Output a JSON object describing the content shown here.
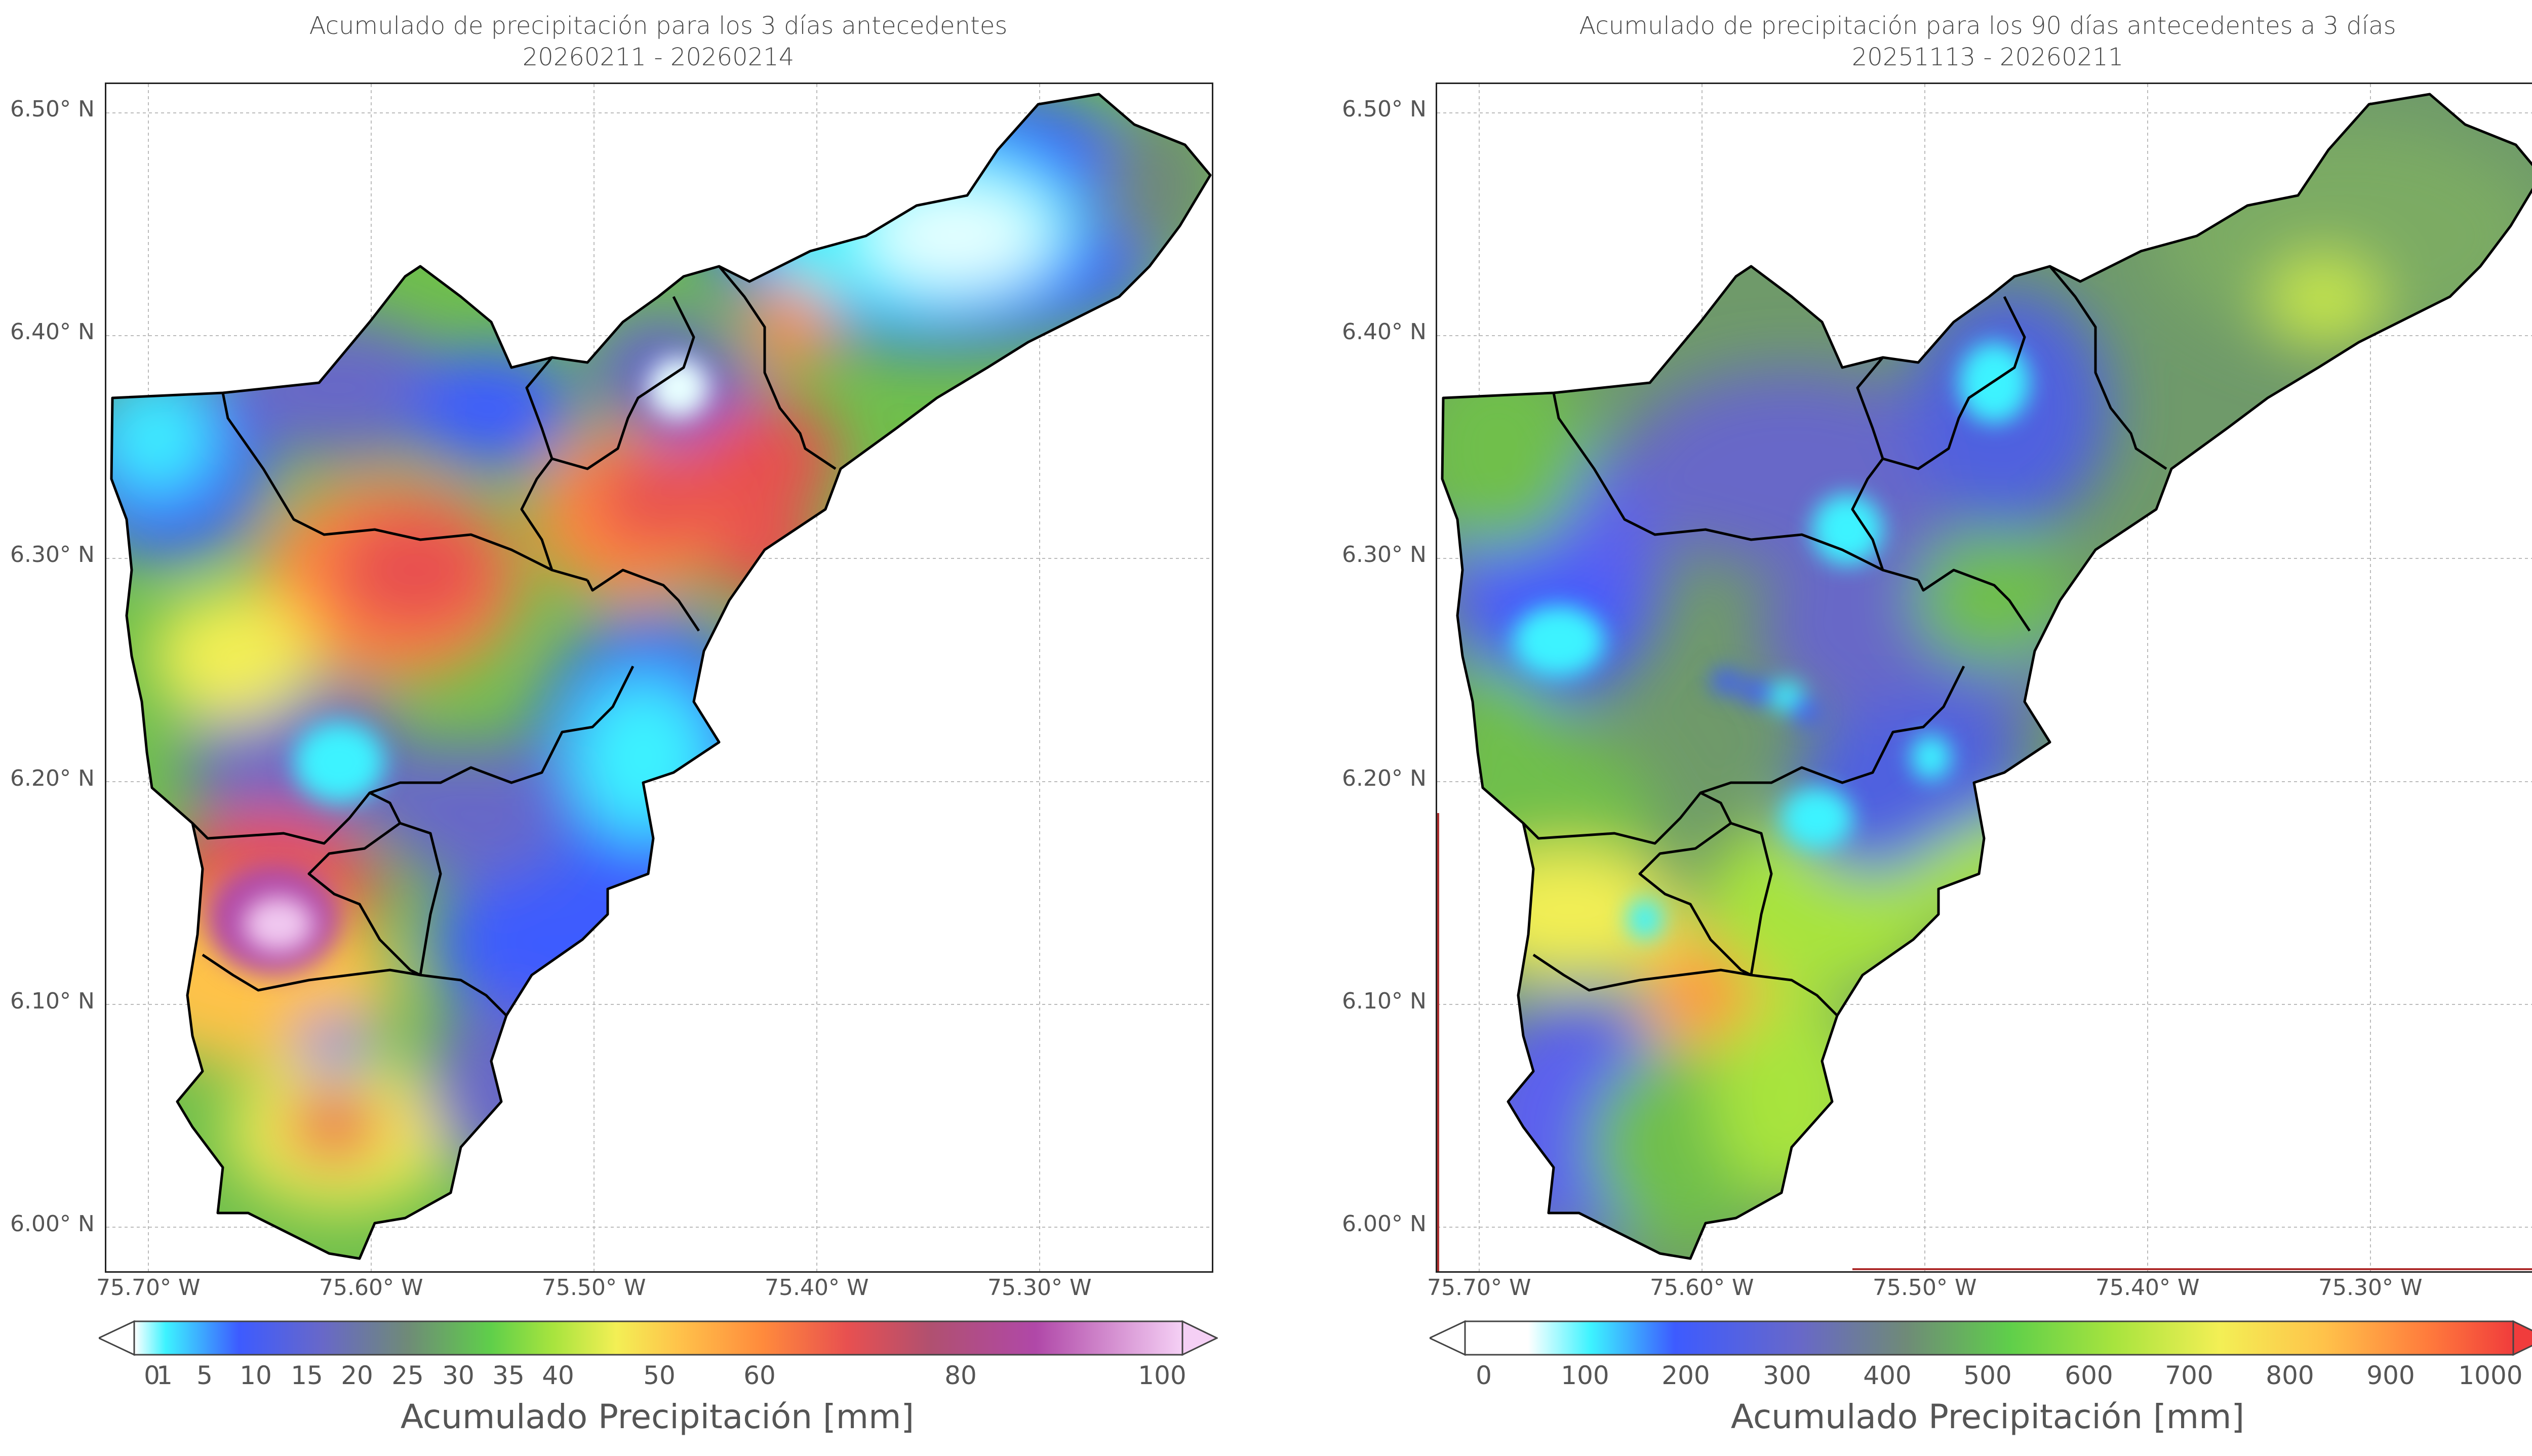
{
  "panels": [
    {
      "title_line1": "Acumulado de precipitación para los 3 días antecedentes",
      "title_line2": "20260211 - 20260214",
      "lat_labels": [
        "6.50° N",
        "6.40° N",
        "6.30° N",
        "6.20° N",
        "6.10° N",
        "6.00° N"
      ],
      "lon_labels": [
        "75.70° W",
        "75.60° W",
        "75.50° W",
        "75.40° W",
        "75.30° W"
      ],
      "colorbar": {
        "title": "Acumulado Precipitación [mm]",
        "ticks": [
          "0",
          "1",
          "5",
          "10",
          "15",
          "20",
          "25",
          "30",
          "35",
          "40",
          "50",
          "60",
          "80",
          "100"
        ],
        "tick_values": [
          0,
          1,
          5,
          10,
          15,
          20,
          25,
          30,
          35,
          40,
          50,
          60,
          80,
          100
        ],
        "colors": [
          "#ffffff",
          "#3df3ff",
          "#3d5bff",
          "#6868c8",
          "#6f8a78",
          "#5fcf4a",
          "#a8e43e",
          "#f3ef55",
          "#ffc24a",
          "#ff8a3c",
          "#e85050",
          "#b05070",
          "#b048a8",
          "#f0c8f0"
        ]
      }
    },
    {
      "title_line1": "Acumulado de precipitación para los 90 días antecedentes a 3 días",
      "title_line2": "20251113 - 20260211",
      "lat_labels": [
        "6.50° N",
        "6.40° N",
        "6.30° N",
        "6.20° N",
        "6.10° N",
        "6.00° N"
      ],
      "lon_labels": [
        "75.70° W",
        "75.60° W",
        "75.50° W",
        "75.40° W",
        "75.30° W"
      ],
      "colorbar": {
        "title": "Acumulado Precipitación [mm]",
        "ticks": [
          "0",
          "100",
          "200",
          "300",
          "400",
          "500",
          "600",
          "700",
          "800",
          "900",
          "1000"
        ],
        "tick_values": [
          0,
          100,
          200,
          300,
          400,
          500,
          600,
          700,
          800,
          900,
          1000
        ],
        "colors": [
          "#ffffff",
          "#3df3ff",
          "#3d5bff",
          "#6868c8",
          "#6f8a78",
          "#5fcf4a",
          "#a8e43e",
          "#f3ef55",
          "#ffc24a",
          "#ff8a3c",
          "#f03c3c"
        ]
      }
    }
  ]
}
